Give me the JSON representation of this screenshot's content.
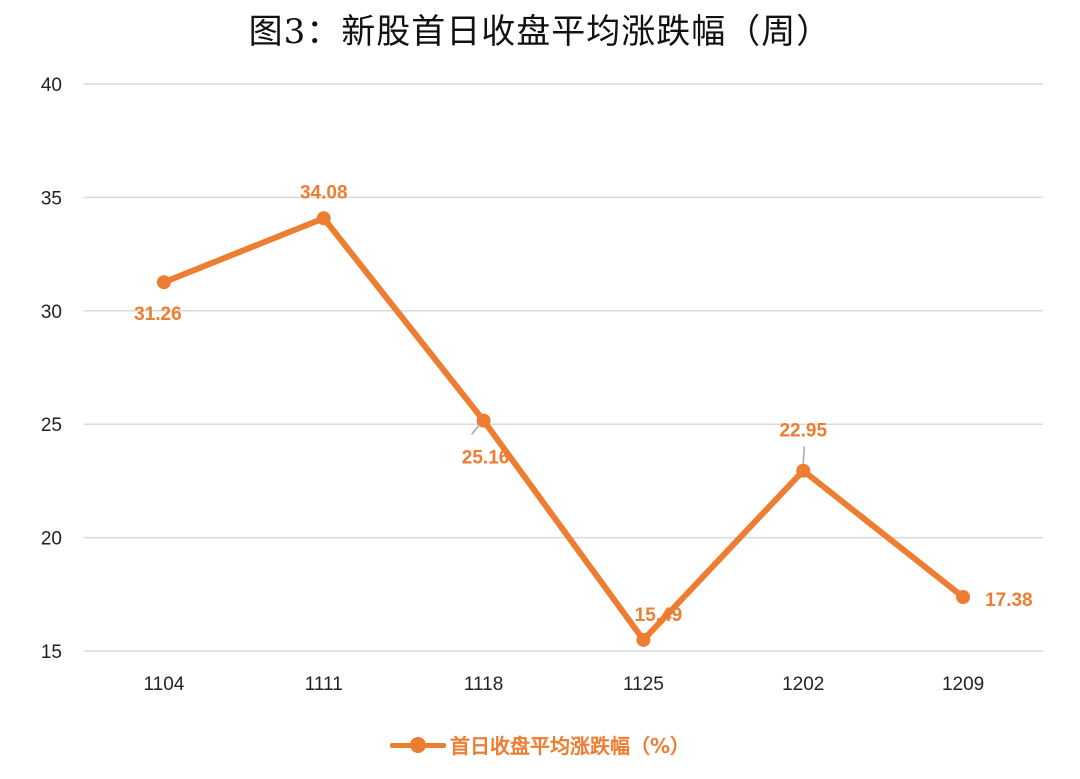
{
  "colors": {
    "series": "#ED7D31",
    "grid": "#D9D9D9",
    "leader": "#A6A6A6"
  },
  "chart_data": {
    "type": "line",
    "title": "图3：新股首日收盘平均涨跌幅（周）",
    "categories": [
      "1104",
      "1111",
      "1118",
      "1125",
      "1202",
      "1209"
    ],
    "ylim": [
      15,
      40
    ],
    "yticks": [
      15,
      20,
      25,
      30,
      35,
      40
    ],
    "grid": true,
    "legend_position": "bottom",
    "series": [
      {
        "name": "首日收盘平均涨跌幅（%）",
        "values": [
          31.26,
          34.08,
          25.16,
          15.49,
          22.95,
          17.38
        ],
        "labels": [
          "31.26",
          "34.08",
          "25.16",
          "15.49",
          "22.95",
          "17.38"
        ]
      }
    ]
  }
}
